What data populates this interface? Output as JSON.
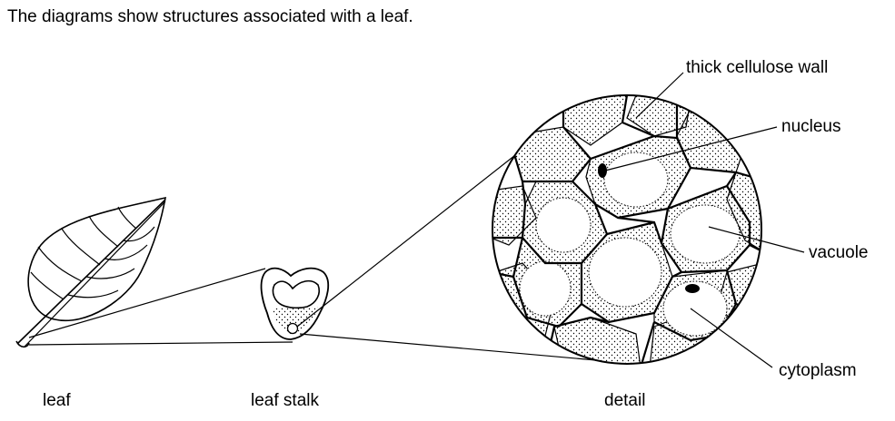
{
  "caption": "The diagrams show structures associated with a leaf.",
  "labels": {
    "leaf": "leaf",
    "leaf_stalk": "leaf stalk",
    "detail": "detail",
    "thick_cellulose_wall": "thick cellulose wall",
    "nucleus": "nucleus",
    "vacuole": "vacuole",
    "cytoplasm": "cytoplasm"
  }
}
